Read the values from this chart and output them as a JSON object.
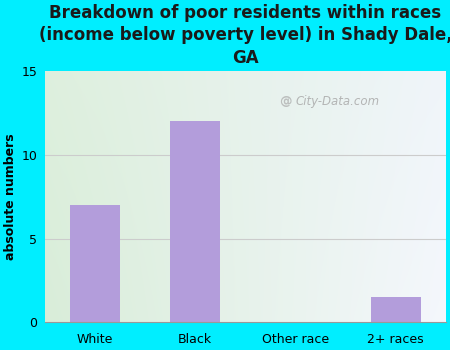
{
  "categories": [
    "White",
    "Black",
    "Other race",
    "2+ races"
  ],
  "values": [
    7,
    12,
    0,
    1.5
  ],
  "bar_color": "#b39ddb",
  "title": "Breakdown of poor residents within races\n(income below poverty level) in Shady Dale,\nGA",
  "ylabel": "absolute numbers",
  "ylim": [
    0,
    15
  ],
  "yticks": [
    0,
    5,
    10,
    15
  ],
  "background_color": "#00eeff",
  "plot_bg_color_topleft": "#ddeedd",
  "plot_bg_color_topright": "#e8eef4",
  "plot_bg_color_bottomleft": "#d4ecd4",
  "plot_bg_color_bottomright": "#f0f4f8",
  "watermark": "City-Data.com",
  "title_fontsize": 12,
  "ylabel_fontsize": 9,
  "tick_fontsize": 9,
  "grid_color": "#cccccc",
  "grid_linewidth": 0.8
}
